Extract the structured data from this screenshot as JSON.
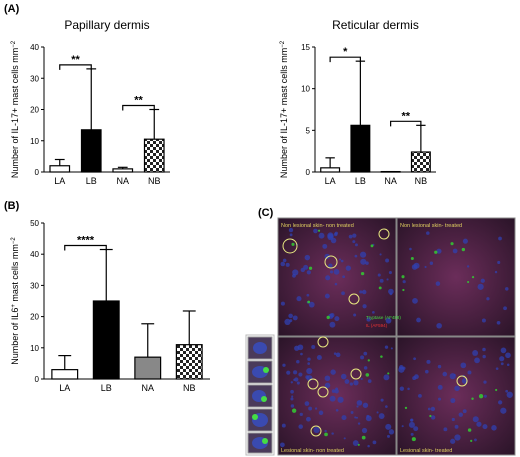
{
  "panel_labels": {
    "a": "(A)",
    "b": "(B)",
    "c": "(C)"
  },
  "colors": {
    "cell_bg": "#3a2138",
    "cell_fg": "#5a2a4a",
    "nuclei": "#2d3a9a",
    "tryptase": "#33cc33",
    "il": "#cc2222",
    "circle": "#e8e880",
    "caption": "#e0d060"
  },
  "chart_data": [
    {
      "id": "papillary",
      "type": "bar",
      "title": "Papillary dermis",
      "ylabel": "Number of IL-17+ mast cells mm",
      "ylabel_sup": "−2",
      "categories": [
        "LA",
        "LB",
        "NA",
        "NB"
      ],
      "values": [
        2,
        13.5,
        1,
        10.5
      ],
      "errors": [
        4,
        33,
        1.5,
        20
      ],
      "ylim": [
        0,
        40
      ],
      "yticks": [
        "0",
        "10",
        "20",
        "30",
        "40"
      ],
      "fills": [
        "white",
        "black",
        "white",
        "check"
      ],
      "sig": [
        {
          "from": 0,
          "to": 1,
          "label": "**"
        },
        {
          "from": 2,
          "to": 3,
          "label": "**"
        }
      ]
    },
    {
      "id": "reticular",
      "type": "bar",
      "title": "Reticular dermis",
      "ylabel": "Number of IL-17+ mast cells mm",
      "ylabel_sup": "−2",
      "categories": [
        "LA",
        "LB",
        "NA",
        "NB"
      ],
      "values": [
        0.5,
        5.6,
        0.05,
        2.4
      ],
      "errors": [
        1.7,
        13.3,
        0.05,
        5.6
      ],
      "ylim": [
        0,
        15
      ],
      "yticks": [
        "0",
        "5",
        "10",
        "15"
      ],
      "fills": [
        "white",
        "black",
        "white",
        "check"
      ],
      "sig": [
        {
          "from": 0,
          "to": 1,
          "label": "*"
        },
        {
          "from": 2,
          "to": 3,
          "label": "**"
        }
      ]
    },
    {
      "id": "il6",
      "type": "bar",
      "title": "",
      "ylabel": "Number of IL6",
      "ylabel_sup": "+",
      "ylabel_tail": " mast cells  mm",
      "ylabel_sup2": "−2",
      "categories": [
        "LA",
        "LB",
        "NA",
        "NB"
      ],
      "values": [
        3,
        25,
        7,
        11
      ],
      "errors": [
        7.5,
        41.5,
        17.7,
        21.8
      ],
      "ylim": [
        0,
        50
      ],
      "yticks": [
        "0",
        "10",
        "20",
        "30",
        "40",
        "50"
      ],
      "fills": [
        "white",
        "black",
        "gray",
        "check"
      ],
      "sig": [
        {
          "from": 0,
          "to": 1,
          "label": "****"
        }
      ]
    }
  ],
  "micrographs": {
    "top_left": "Non lesional skin- non treated",
    "top_right": "Non lesional skin- treated",
    "bottom_left": "Lesional skin- non treated",
    "bottom_right": "Lesional skin- treated",
    "legend_green": "Tryptase (AF488)",
    "legend_red": "IL (AF594)"
  }
}
